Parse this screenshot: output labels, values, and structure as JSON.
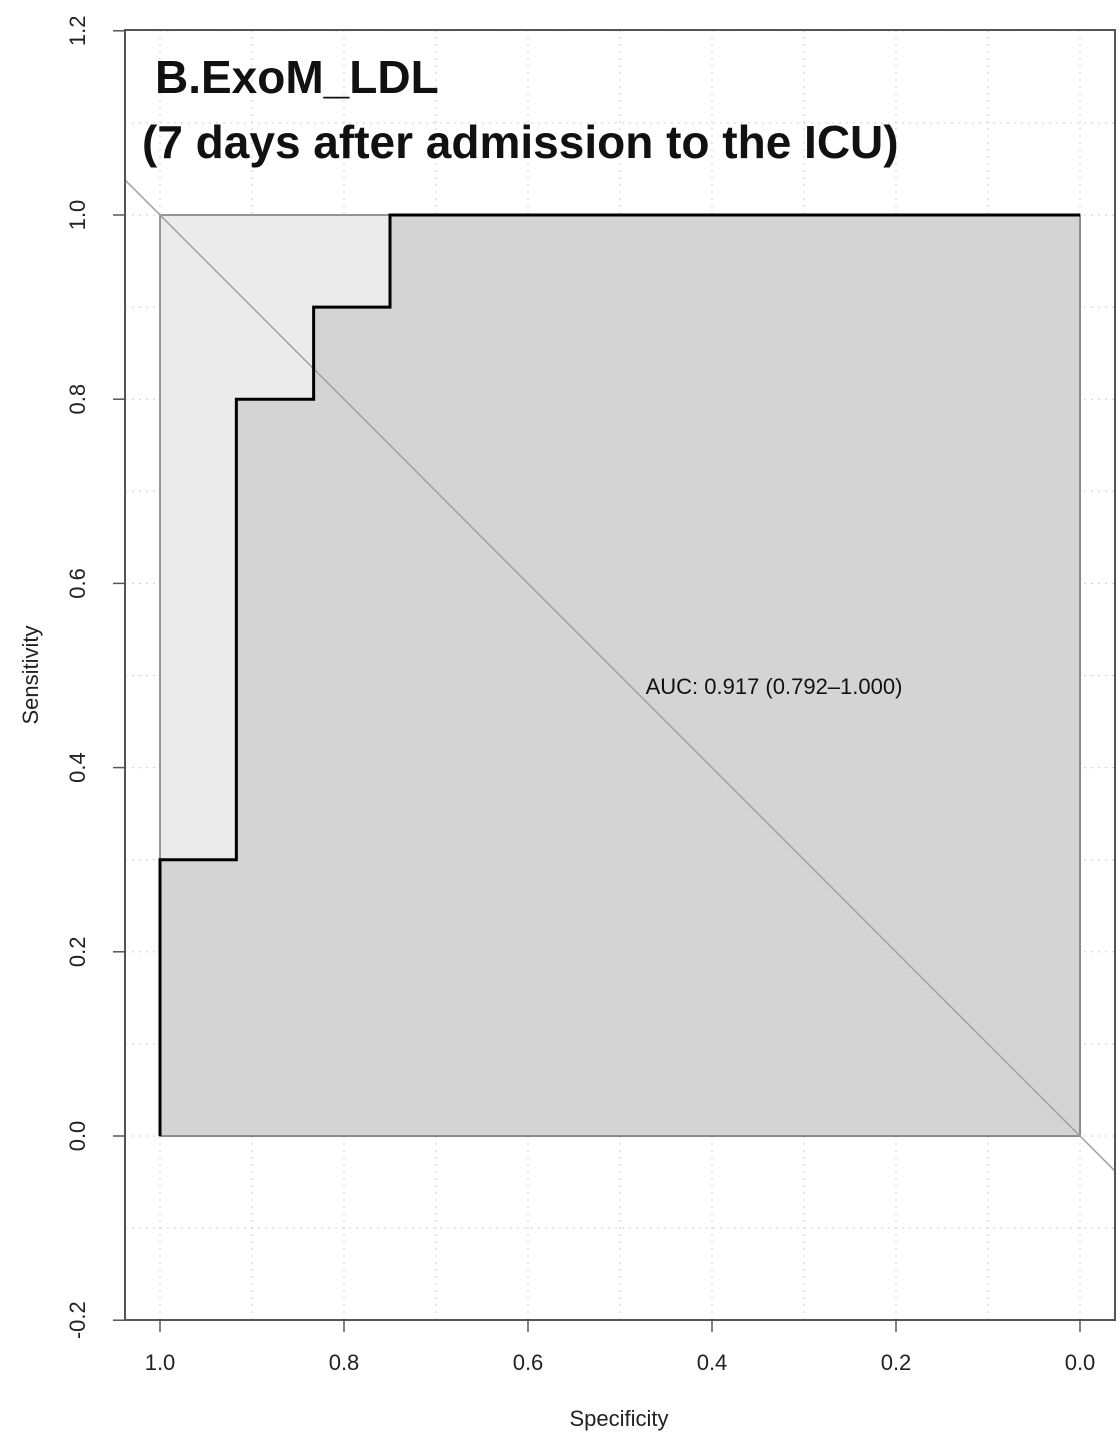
{
  "chart_data": {
    "type": "line",
    "title": "B.ExoM_LDL",
    "subtitle": "(7 days after admission to the ICU)",
    "xlabel": "Specificity",
    "ylabel": "Sensitivity",
    "xlim": [
      1.0,
      0.0
    ],
    "ylim": [
      -0.2,
      1.2
    ],
    "x_reversed": true,
    "grid": true,
    "x_ticks": [
      "1.0",
      "0.8",
      "0.6",
      "0.4",
      "0.2",
      "0.0"
    ],
    "y_ticks": [
      "-0.2",
      "0.0",
      "0.2",
      "0.4",
      "0.6",
      "0.8",
      "1.0",
      "1.2"
    ],
    "series": [
      {
        "specificity": [
          1.0,
          1.0,
          0.917,
          0.917,
          0.833,
          0.833,
          0.75,
          0.75,
          0.0
        ],
        "sensitivity": [
          0.0,
          0.3,
          0.3,
          0.8,
          0.8,
          0.9,
          0.9,
          1.0,
          1.0
        ]
      }
    ],
    "ci_band": {
      "specificity": [
        1.0,
        1.0,
        0.75,
        0.0
      ],
      "sensitivity": [
        0.0,
        1.0,
        1.0,
        1.0
      ]
    },
    "annotation": "AUC: 0.917 (0.792–1.000)",
    "colors": {
      "curve": "#000000",
      "auc_fill": "#d4d4d4",
      "ci_fill": "#ebebeb",
      "diagonal": "#a0a0a0",
      "grid": "#cfcfcf"
    }
  }
}
